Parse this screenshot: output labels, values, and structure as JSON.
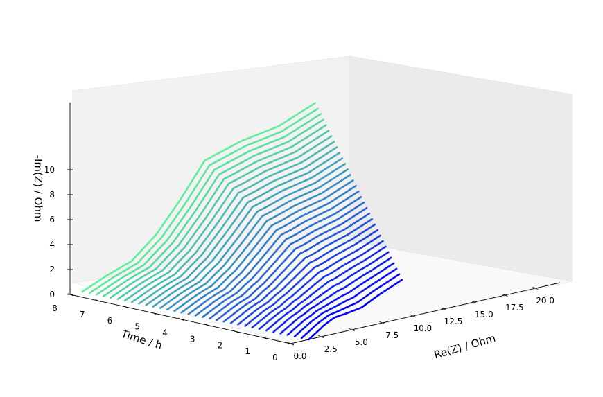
{
  "chart_data": {
    "type": "line",
    "projection": "3d",
    "title": "",
    "xlabel": "Re(Z) / Ohm",
    "ylabel": "Time / h",
    "zlabel": "-Im(Z) / Ohm",
    "xlim": [
      0,
      22
    ],
    "ylim": [
      0,
      8
    ],
    "zlim": [
      0,
      11.5
    ],
    "x_ticks": [
      "0.0",
      "2.5",
      "5.0",
      "7.5",
      "10.0",
      "12.5",
      "15.0",
      "17.5",
      "20.0"
    ],
    "y_ticks": [
      "0",
      "1",
      "2",
      "3",
      "4",
      "5",
      "6",
      "7",
      "8"
    ],
    "z_ticks": [
      "0",
      "2",
      "4",
      "6",
      "8",
      "10"
    ],
    "grid": false,
    "panes": true,
    "colormap": {
      "start": "#0000ff",
      "end": "#5fee9a"
    },
    "series_count": 33,
    "series_time_range": [
      0,
      8
    ],
    "series_profile": {
      "note": "each series is a Nyquist curve at one time; shape evolves linearly from first to last",
      "first": {
        "time": 0,
        "x": [
          1.5,
          2.8,
          3.6,
          4.5,
          5.8,
          7.2,
          9.1
        ],
        "z": [
          0.0,
          0.9,
          1.3,
          1.4,
          1.6,
          2.3,
          3.1
        ]
      },
      "last": {
        "time": 8,
        "x": [
          1.0,
          3.0,
          5.0,
          7.0,
          9.0,
          11.0,
          14.0,
          17.0,
          20.0
        ],
        "z": [
          0.0,
          0.85,
          1.55,
          3.2,
          5.6,
          8.3,
          9.2,
          9.7,
          10.9
        ]
      }
    }
  }
}
